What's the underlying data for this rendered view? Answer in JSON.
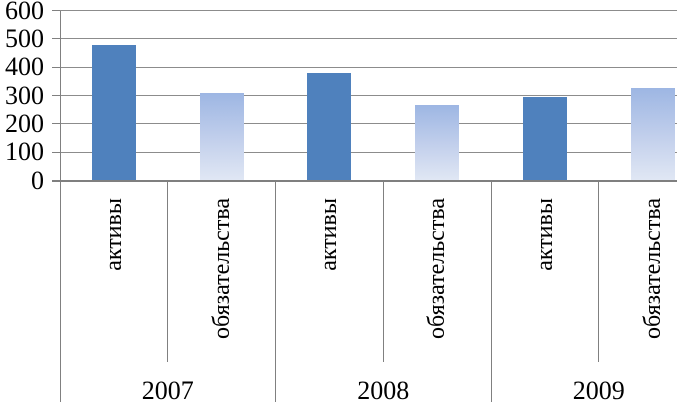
{
  "chart_data": {
    "type": "bar",
    "title": "",
    "categories": [
      "2007",
      "2008",
      "2009"
    ],
    "series": [
      {
        "name": "активы",
        "values": [
          480,
          380,
          295
        ]
      },
      {
        "name": "обязательства",
        "values": [
          310,
          265,
          325
        ]
      }
    ],
    "bar_category_labels": [
      "активы",
      "обязательства",
      "активы",
      "обязательства",
      "активы",
      "обязательства"
    ],
    "y_axis": {
      "min": 0,
      "max": 600,
      "step": 100,
      "tick_labels": [
        "0",
        "100",
        "200",
        "300",
        "400",
        "500",
        "600"
      ]
    },
    "x_axis_group_labels": [
      "2007",
      "2008",
      "2009"
    ],
    "legend": "none",
    "grid": true,
    "colors": {
      "assets_bar_fill": "#4f81bd",
      "liabilities_bar_gradient_top": "#9db6e3",
      "liabilities_bar_gradient_bottom": "#e0e7f4",
      "gridline": "#8c8c8c",
      "axis_line": "#7f7f7f",
      "text": "#000000",
      "background": "#ffffff"
    }
  }
}
